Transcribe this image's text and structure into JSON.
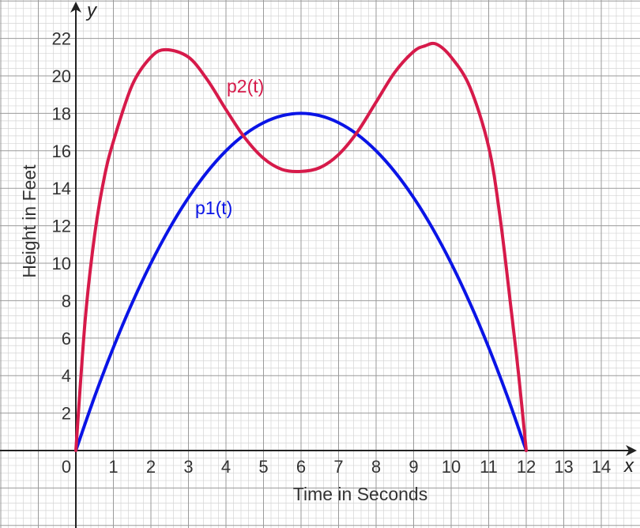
{
  "chart_data": {
    "type": "line",
    "xlabel": "Time in Seconds",
    "ylabel": "Height in Feet",
    "x_axis_letter": "x",
    "y_axis_letter": "y",
    "origin_label": "0",
    "xlim": [
      -2,
      14.8
    ],
    "ylim": [
      -4,
      24
    ],
    "x_ticks": [
      1,
      2,
      3,
      4,
      5,
      6,
      7,
      8,
      9,
      10,
      11,
      12,
      13,
      14
    ],
    "y_ticks": [
      2,
      4,
      6,
      8,
      10,
      12,
      14,
      16,
      18,
      20,
      22
    ],
    "grid": true,
    "series": [
      {
        "name": "p1(t)",
        "color": "#0a14e6",
        "x": [
          0,
          0.5,
          1,
          1.5,
          2,
          2.5,
          3,
          3.5,
          4,
          4.5,
          5,
          5.5,
          6,
          6.5,
          7,
          7.5,
          8,
          8.5,
          9,
          9.5,
          10,
          10.5,
          11,
          11.5,
          12
        ],
        "y": [
          0,
          2.875,
          5.5,
          7.875,
          10,
          11.875,
          13.5,
          14.875,
          16,
          16.875,
          17.5,
          17.875,
          18,
          17.875,
          17.5,
          16.875,
          16,
          14.875,
          13.5,
          11.875,
          10,
          7.875,
          5.5,
          2.875,
          0
        ]
      },
      {
        "name": "p2(t)",
        "color": "#d61a4a",
        "x": [
          0,
          0.25,
          0.5,
          0.75,
          1,
          1.5,
          2,
          2.4,
          3,
          3.5,
          4,
          4.5,
          5,
          5.5,
          6,
          6.5,
          7,
          7.5,
          8,
          8.5,
          9,
          9.3,
          9.6,
          10,
          10.5,
          11,
          11.3,
          11.6,
          11.8,
          12
        ],
        "y": [
          0,
          7.0,
          11.5,
          14.5,
          16.5,
          19.5,
          21.0,
          21.4,
          21.0,
          19.8,
          18.2,
          16.7,
          15.6,
          15.0,
          14.9,
          15.1,
          15.8,
          17.0,
          18.6,
          20.2,
          21.3,
          21.6,
          21.7,
          21.0,
          19.4,
          16.2,
          12.5,
          7.5,
          4.0,
          0
        ]
      }
    ]
  }
}
